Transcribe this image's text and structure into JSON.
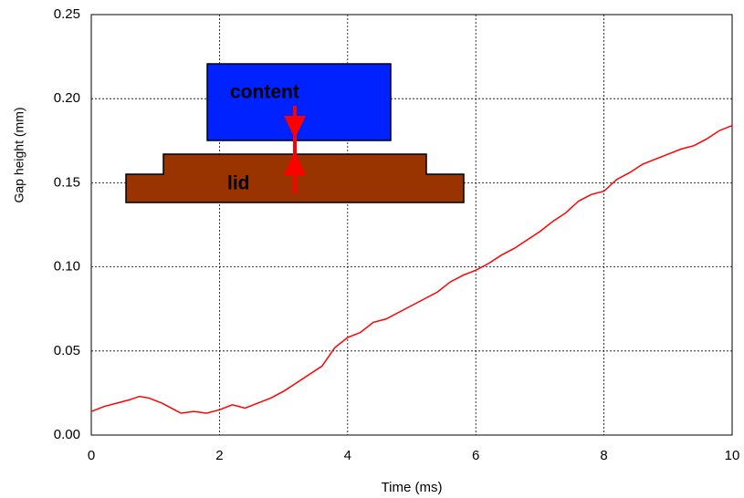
{
  "chart_data": {
    "type": "line",
    "xlabel": "Time (ms)",
    "ylabel": "Gap height (mm)",
    "x": [
      0,
      0.2,
      0.4,
      0.6,
      0.75,
      0.9,
      1.1,
      1.3,
      1.4,
      1.6,
      1.8,
      2.0,
      2.2,
      2.4,
      2.6,
      2.8,
      3.0,
      3.2,
      3.4,
      3.6,
      3.8,
      4.0,
      4.2,
      4.4,
      4.6,
      4.8,
      5.0,
      5.2,
      5.4,
      5.6,
      5.8,
      6.0,
      6.2,
      6.4,
      6.6,
      6.8,
      7.0,
      7.2,
      7.4,
      7.6,
      7.8,
      8.0,
      8.2,
      8.4,
      8.6,
      8.8,
      9.0,
      9.2,
      9.4,
      9.6,
      9.8,
      10
    ],
    "series": [
      {
        "color": "#ff0000",
        "values": [
          0.014,
          0.017,
          0.019,
          0.021,
          0.023,
          0.022,
          0.019,
          0.015,
          0.013,
          0.014,
          0.013,
          0.015,
          0.018,
          0.016,
          0.019,
          0.022,
          0.026,
          0.031,
          0.036,
          0.041,
          0.052,
          0.058,
          0.061,
          0.067,
          0.069,
          0.073,
          0.077,
          0.081,
          0.085,
          0.091,
          0.095,
          0.098,
          0.102,
          0.107,
          0.111,
          0.116,
          0.121,
          0.127,
          0.132,
          0.139,
          0.143,
          0.145,
          0.152,
          0.156,
          0.161,
          0.164,
          0.167,
          0.17,
          0.172,
          0.176,
          0.181,
          0.184
        ]
      }
    ],
    "xlim": [
      0,
      10
    ],
    "xticks": [
      0,
      2,
      4,
      6,
      8,
      10
    ],
    "ylim": [
      0,
      0.25
    ],
    "yticks": [
      {
        "value": 0,
        "label": "0.00"
      },
      {
        "value": 0.05,
        "label": "0.05"
      },
      {
        "value": 0.1,
        "label": "0.10"
      },
      {
        "value": 0.15,
        "label": "0.15"
      },
      {
        "value": 0.2,
        "label": "0.20"
      },
      {
        "value": 0.25,
        "label": "0.25"
      }
    ],
    "grid": true,
    "annotations": [
      "content",
      "lid"
    ]
  }
}
